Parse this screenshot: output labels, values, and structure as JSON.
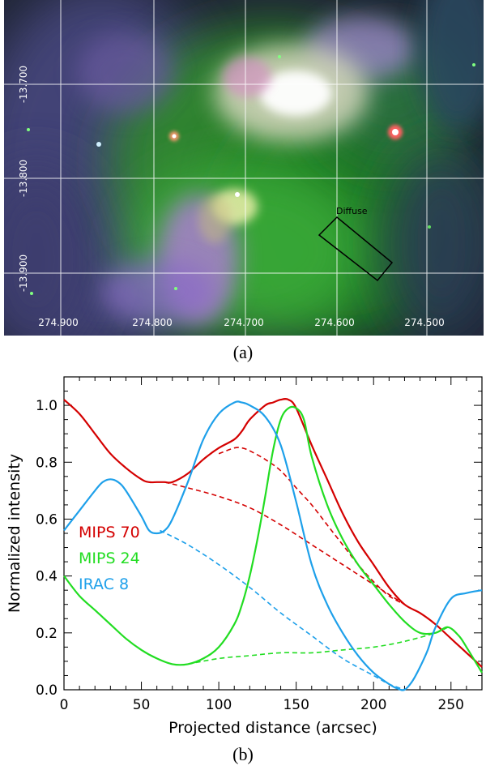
{
  "panel_a": {
    "label": "(a)",
    "ra_ticks": [
      "274.900",
      "274.800",
      "274.700",
      "274.600",
      "274.500"
    ],
    "dec_ticks": [
      "-13.700",
      "-13.800",
      "-13.900"
    ],
    "region_label": "Diffuse"
  },
  "panel_b": {
    "label": "(b)"
  },
  "chart_data": {
    "type": "line",
    "xlabel": "Projected distance (arcsec)",
    "ylabel": "Normalized intensity",
    "xlim": [
      0,
      270
    ],
    "ylim": [
      0,
      1.1
    ],
    "xticks": [
      0,
      50,
      100,
      150,
      200,
      250
    ],
    "yticks": [
      0.0,
      0.2,
      0.4,
      0.6,
      0.8,
      1.0
    ],
    "xtick_labels": [
      "0",
      "50",
      "100",
      "150",
      "200",
      "250"
    ],
    "ytick_labels": [
      "0.0",
      "0.2",
      "0.4",
      "0.6",
      "0.8",
      "1.0"
    ],
    "legend_position": "middle-left",
    "series": [
      {
        "name": "MIPS 70",
        "color": "#d40000",
        "style": "solid",
        "x": [
          0,
          10,
          20,
          30,
          40,
          50,
          55,
          60,
          65,
          70,
          80,
          90,
          100,
          110,
          115,
          120,
          130,
          135,
          140,
          145,
          150,
          160,
          170,
          180,
          190,
          200,
          210,
          220,
          230,
          240,
          250,
          260,
          270
        ],
        "y": [
          1.02,
          0.97,
          0.9,
          0.83,
          0.78,
          0.74,
          0.73,
          0.73,
          0.73,
          0.73,
          0.76,
          0.81,
          0.85,
          0.88,
          0.91,
          0.95,
          1.0,
          1.01,
          1.02,
          1.02,
          0.99,
          0.86,
          0.74,
          0.62,
          0.52,
          0.44,
          0.36,
          0.3,
          0.27,
          0.23,
          0.18,
          0.13,
          0.08
        ]
      },
      {
        "name": "MIPS 70 (fit)",
        "color": "#d40000",
        "style": "dashed",
        "x": [
          65,
          80,
          100,
          120,
          140,
          160,
          180,
          200,
          220
        ],
        "y": [
          0.73,
          0.71,
          0.68,
          0.64,
          0.58,
          0.51,
          0.44,
          0.37,
          0.3
        ]
      },
      {
        "name": "MIPS 70 (fit 2)",
        "color": "#d40000",
        "style": "dashed",
        "x": [
          100,
          110,
          115,
          120,
          130,
          140,
          150,
          160,
          170,
          180,
          190,
          200,
          210,
          220
        ],
        "y": [
          0.83,
          0.85,
          0.85,
          0.84,
          0.81,
          0.77,
          0.71,
          0.65,
          0.58,
          0.51,
          0.44,
          0.38,
          0.33,
          0.3
        ]
      },
      {
        "name": "MIPS 24",
        "color": "#22dd22",
        "style": "solid",
        "x": [
          0,
          10,
          20,
          30,
          40,
          50,
          60,
          70,
          80,
          90,
          100,
          110,
          115,
          120,
          125,
          130,
          135,
          140,
          145,
          150,
          155,
          160,
          170,
          180,
          190,
          200,
          210,
          220,
          230,
          240,
          248,
          255,
          260,
          270
        ],
        "y": [
          0.4,
          0.33,
          0.28,
          0.23,
          0.18,
          0.14,
          0.11,
          0.09,
          0.09,
          0.11,
          0.15,
          0.23,
          0.3,
          0.4,
          0.53,
          0.68,
          0.84,
          0.95,
          0.99,
          0.99,
          0.95,
          0.82,
          0.65,
          0.53,
          0.44,
          0.37,
          0.3,
          0.24,
          0.2,
          0.2,
          0.22,
          0.19,
          0.15,
          0.06
        ]
      },
      {
        "name": "MIPS 24 (fit)",
        "color": "#22dd22",
        "style": "dashed",
        "x": [
          80,
          100,
          120,
          140,
          160,
          180,
          200,
          220,
          240,
          248
        ],
        "y": [
          0.09,
          0.11,
          0.12,
          0.13,
          0.13,
          0.14,
          0.15,
          0.17,
          0.2,
          0.22
        ]
      },
      {
        "name": "IRAC 8",
        "color": "#1ea0ea",
        "style": "solid",
        "x": [
          0,
          10,
          20,
          25,
          30,
          35,
          40,
          50,
          55,
          60,
          65,
          70,
          80,
          90,
          100,
          110,
          115,
          120,
          130,
          140,
          150,
          160,
          170,
          180,
          190,
          200,
          210,
          215,
          220,
          225,
          230,
          235,
          240,
          250,
          260,
          270
        ],
        "y": [
          0.56,
          0.63,
          0.7,
          0.73,
          0.74,
          0.73,
          0.7,
          0.61,
          0.56,
          0.55,
          0.56,
          0.6,
          0.73,
          0.88,
          0.97,
          1.01,
          1.01,
          1.0,
          0.96,
          0.86,
          0.66,
          0.44,
          0.3,
          0.2,
          0.12,
          0.06,
          0.02,
          0.005,
          0.0,
          0.03,
          0.08,
          0.14,
          0.22,
          0.32,
          0.34,
          0.35
        ]
      },
      {
        "name": "IRAC 8 (fit)",
        "color": "#1ea0ea",
        "style": "dashed",
        "x": [
          62,
          80,
          100,
          120,
          140,
          160,
          180,
          200,
          210,
          220
        ],
        "y": [
          0.56,
          0.51,
          0.44,
          0.36,
          0.27,
          0.19,
          0.11,
          0.05,
          0.02,
          0.0
        ]
      }
    ],
    "legend": [
      {
        "label": "MIPS 70",
        "color": "#d40000"
      },
      {
        "label": "MIPS 24",
        "color": "#22dd22"
      },
      {
        "label": "IRAC 8",
        "color": "#1ea0ea"
      }
    ]
  }
}
